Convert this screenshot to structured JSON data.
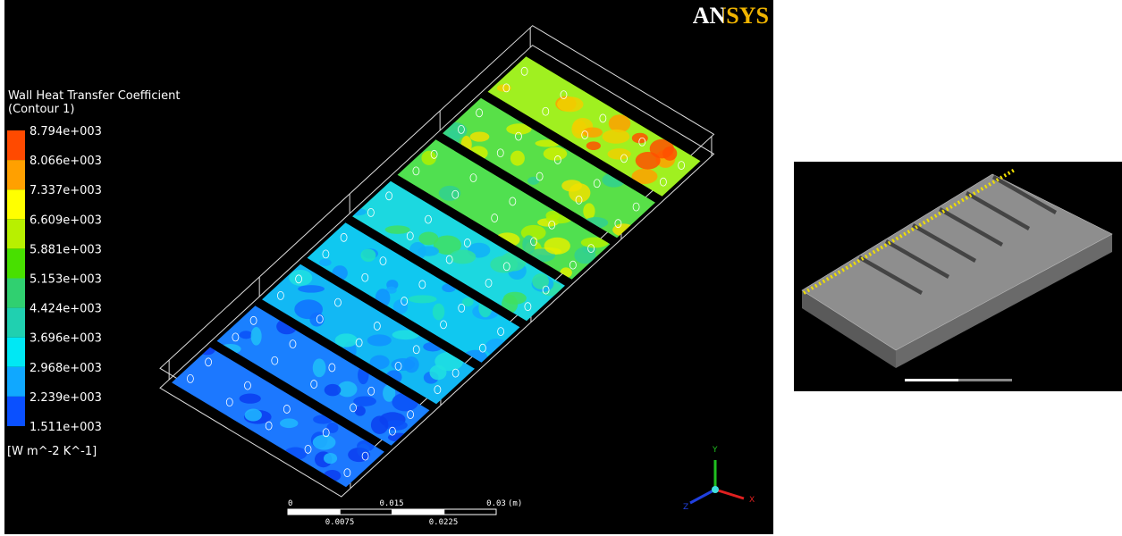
{
  "logo": "ANSYS",
  "legend": {
    "title": "Wall Heat Transfer Coefficient",
    "subtitle": "(Contour 1)",
    "labels": [
      "8.794e+003",
      "8.066e+003",
      "7.337e+003",
      "6.609e+003",
      "5.881e+003",
      "5.153e+003",
      "4.424e+003",
      "3.696e+003",
      "2.968e+003",
      "2.239e+003",
      "1.511e+003"
    ],
    "units": "[W m^-2 K^-1]"
  },
  "scale_bar": {
    "top_labels": [
      "0",
      "0.015",
      "0.03"
    ],
    "unit": "(m)",
    "bottom_labels": [
      "0.0075",
      "0.0225"
    ]
  },
  "axes": {
    "x": "X",
    "y": "Y",
    "z": "Z"
  }
}
